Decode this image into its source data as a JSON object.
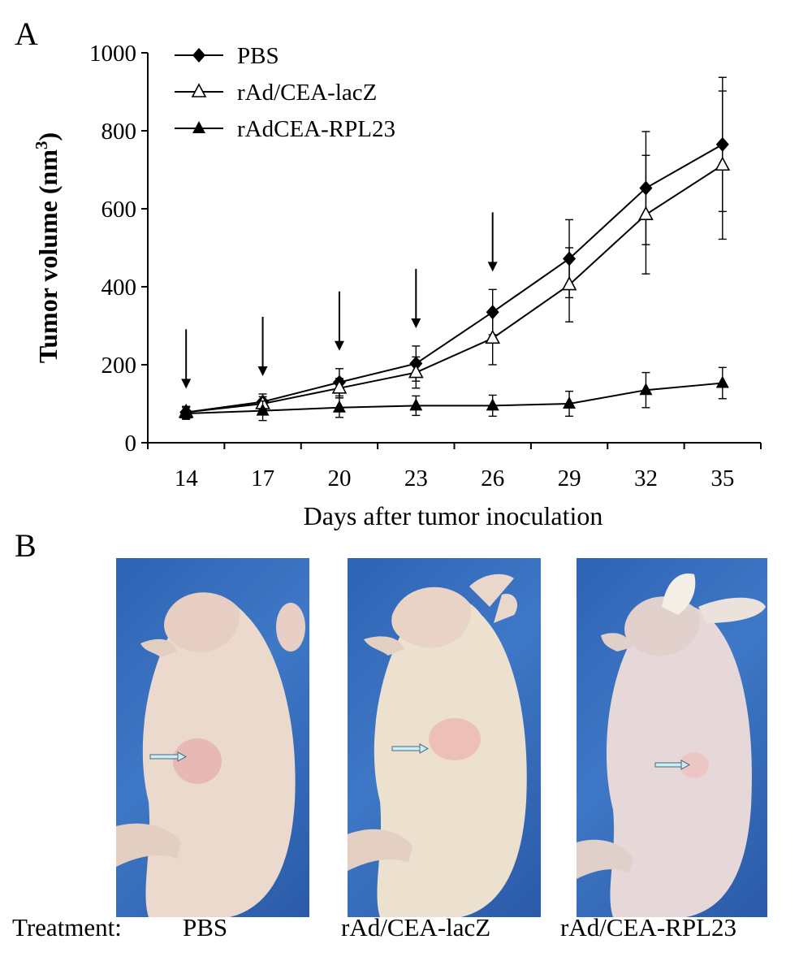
{
  "panels": {
    "a": "A",
    "b": "B"
  },
  "chart_data": {
    "type": "line",
    "xlabel": "Days after tumor inoculation",
    "ylabel": "Tumor volume (nm³)",
    "ylabel_main": "Tumor volume (nm",
    "ylabel_sup": "3",
    "ylabel_close": ")",
    "ylim": [
      0,
      1000
    ],
    "yticks": [
      0,
      200,
      400,
      600,
      800,
      1000
    ],
    "xticks": [
      14,
      17,
      20,
      23,
      26,
      29,
      32,
      35
    ],
    "x": [
      14,
      17,
      20,
      23,
      26,
      29,
      32,
      35
    ],
    "grid": false,
    "legend_position": "top-left",
    "arrows_at_days": [
      14,
      17,
      20,
      23,
      26
    ],
    "series": [
      {
        "name": "PBS",
        "marker": "filled-diamond",
        "values": [
          78,
          105,
          155,
          203,
          335,
          472,
          653,
          765
        ],
        "errors": [
          15,
          20,
          35,
          45,
          58,
          100,
          145,
          172
        ]
      },
      {
        "name": "rAd/CEA-lacZ",
        "marker": "open-triangle",
        "values": [
          78,
          100,
          140,
          180,
          268,
          405,
          585,
          712
        ],
        "errors": [
          15,
          18,
          25,
          40,
          68,
          95,
          152,
          190
        ]
      },
      {
        "name": "rAdCEA-RPL23",
        "marker": "filled-triangle",
        "values": [
          75,
          82,
          90,
          95,
          95,
          100,
          135,
          153
        ],
        "errors": [
          15,
          25,
          25,
          25,
          27,
          32,
          45,
          40
        ]
      }
    ]
  },
  "treatment": {
    "label": "Treatment:",
    "groups": [
      "PBS",
      "rAd/CEA-lacZ",
      "rAd/CEA-RPL23"
    ]
  }
}
